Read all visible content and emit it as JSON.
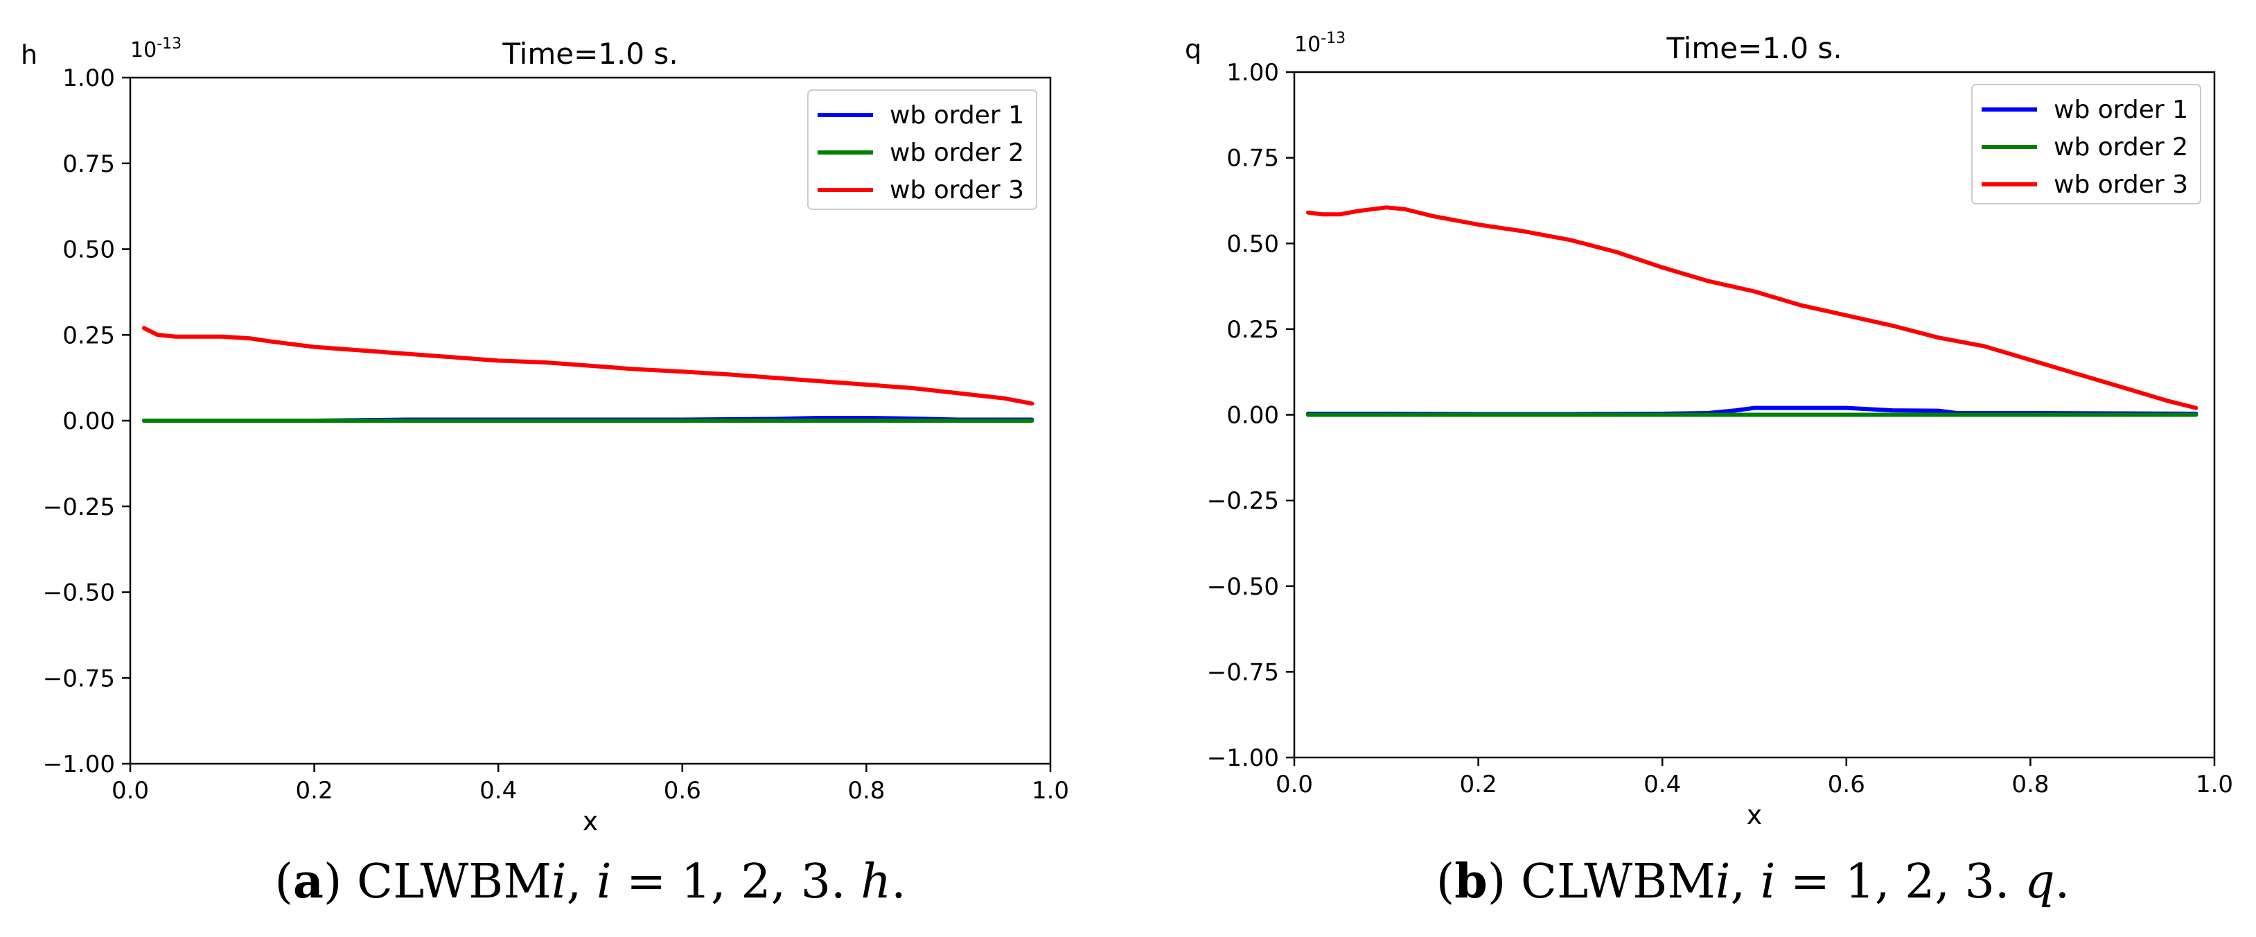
{
  "chart_data": [
    {
      "type": "line",
      "title": "Time=1.0 s.",
      "xlabel": "x",
      "ylabel": "h",
      "y_scale_label": "10",
      "y_scale_exponent": "-13",
      "xlim": [
        0.0,
        1.0
      ],
      "ylim": [
        -1.0,
        1.0
      ],
      "xticks": [
        0.0,
        0.2,
        0.4,
        0.6,
        0.8,
        1.0
      ],
      "xtick_labels": [
        "0.0",
        "0.2",
        "0.4",
        "0.6",
        "0.8",
        "1.0"
      ],
      "yticks": [
        -1.0,
        -0.75,
        -0.5,
        -0.25,
        0.0,
        0.25,
        0.5,
        0.75,
        1.0
      ],
      "ytick_labels": [
        "−1.00",
        "−0.75",
        "−0.50",
        "−0.25",
        "0.00",
        "0.25",
        "0.50",
        "0.75",
        "1.00"
      ],
      "legend_position": "top-right",
      "caption": {
        "letter": "a",
        "text": " CLWBM",
        "var_i": "i",
        "sep": ", ",
        "eq": " = 1, 2, 3. ",
        "var": "h",
        "end": "."
      },
      "series": [
        {
          "name": "wb order 1",
          "color": "#0000ff",
          "x": [
            0.015,
            0.1,
            0.2,
            0.3,
            0.4,
            0.5,
            0.6,
            0.7,
            0.75,
            0.8,
            0.85,
            0.9,
            0.98
          ],
          "y": [
            0.0,
            0.0,
            0.0,
            0.003,
            0.003,
            0.003,
            0.003,
            0.005,
            0.008,
            0.008,
            0.006,
            0.003,
            0.003
          ]
        },
        {
          "name": "wb order 2",
          "color": "#008000",
          "x": [
            0.015,
            0.2,
            0.4,
            0.6,
            0.8,
            0.98
          ],
          "y": [
            0.0,
            0.0,
            0.0,
            0.0,
            0.0,
            0.0
          ]
        },
        {
          "name": "wb order 3",
          "color": "#ff0000",
          "x": [
            0.015,
            0.03,
            0.05,
            0.1,
            0.13,
            0.15,
            0.2,
            0.25,
            0.3,
            0.35,
            0.4,
            0.45,
            0.5,
            0.55,
            0.6,
            0.65,
            0.7,
            0.75,
            0.8,
            0.85,
            0.9,
            0.95,
            0.98
          ],
          "y": [
            0.27,
            0.25,
            0.245,
            0.245,
            0.24,
            0.232,
            0.215,
            0.205,
            0.195,
            0.185,
            0.175,
            0.17,
            0.16,
            0.15,
            0.143,
            0.135,
            0.125,
            0.115,
            0.105,
            0.095,
            0.08,
            0.065,
            0.05
          ]
        }
      ]
    },
    {
      "type": "line",
      "title": "Time=1.0 s.",
      "xlabel": "x",
      "ylabel": "q",
      "y_scale_label": "10",
      "y_scale_exponent": "-13",
      "xlim": [
        0.0,
        1.0
      ],
      "ylim": [
        -1.0,
        1.0
      ],
      "xticks": [
        0.0,
        0.2,
        0.4,
        0.6,
        0.8,
        1.0
      ],
      "xtick_labels": [
        "0.0",
        "0.2",
        "0.4",
        "0.6",
        "0.8",
        "1.0"
      ],
      "yticks": [
        -1.0,
        -0.75,
        -0.5,
        -0.25,
        0.0,
        0.25,
        0.5,
        0.75,
        1.0
      ],
      "ytick_labels": [
        "−1.00",
        "−0.75",
        "−0.50",
        "−0.25",
        "0.00",
        "0.25",
        "0.50",
        "0.75",
        "1.00"
      ],
      "legend_position": "top-right",
      "caption": {
        "letter": "b",
        "text": " CLWBM",
        "var_i": "i",
        "sep": ", ",
        "eq": " = 1, 2, 3. ",
        "var": "q",
        "end": "."
      },
      "series": [
        {
          "name": "wb order 1",
          "color": "#0000ff",
          "x": [
            0.015,
            0.1,
            0.2,
            0.3,
            0.4,
            0.45,
            0.48,
            0.5,
            0.55,
            0.6,
            0.65,
            0.7,
            0.72,
            0.8,
            0.9,
            0.98
          ],
          "y": [
            0.003,
            0.003,
            0.002,
            0.002,
            0.003,
            0.005,
            0.013,
            0.02,
            0.02,
            0.02,
            0.013,
            0.012,
            0.005,
            0.005,
            0.004,
            0.003
          ]
        },
        {
          "name": "wb order 2",
          "color": "#008000",
          "x": [
            0.015,
            0.2,
            0.4,
            0.6,
            0.8,
            0.98
          ],
          "y": [
            0.0,
            0.0,
            0.0,
            0.0,
            0.0,
            0.0
          ]
        },
        {
          "name": "wb order 3",
          "color": "#ff0000",
          "x": [
            0.015,
            0.03,
            0.05,
            0.07,
            0.1,
            0.12,
            0.15,
            0.2,
            0.25,
            0.3,
            0.35,
            0.4,
            0.45,
            0.5,
            0.55,
            0.6,
            0.65,
            0.7,
            0.75,
            0.8,
            0.85,
            0.9,
            0.95,
            0.98
          ],
          "y": [
            0.59,
            0.585,
            0.585,
            0.595,
            0.605,
            0.6,
            0.58,
            0.555,
            0.535,
            0.51,
            0.475,
            0.43,
            0.39,
            0.36,
            0.32,
            0.29,
            0.26,
            0.225,
            0.2,
            0.16,
            0.12,
            0.08,
            0.04,
            0.02
          ]
        }
      ]
    }
  ]
}
